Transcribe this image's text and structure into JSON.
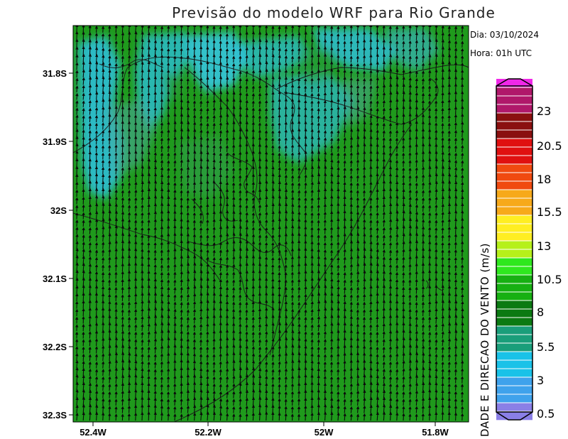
{
  "title": "Previsão do modelo WRF para Rio Grande",
  "info": {
    "date": "Dia: 03/10/2024",
    "hour": "Hora: 01h UTC"
  },
  "latitude_labels": [
    "31.8S",
    "31.9S",
    "32S",
    "32.1S",
    "32.2S",
    "32.3S"
  ],
  "longitude_labels": [
    "52.4W",
    "52.2W",
    "52W",
    "51.8W"
  ],
  "colorbar": {
    "title": "DADE E DIRECAO DO VENTO (m/s)",
    "labels": [
      "23",
      "20.5",
      "18",
      "15.5",
      "13",
      "10.5",
      "8",
      "5.5",
      "3",
      "0.5"
    ],
    "colors": {
      "low": "#8a7fe6",
      "blue": "#3fa2ec",
      "cyan": "#19c2e8",
      "teal": "#1a9e7a",
      "green_dark": "#0b7a12",
      "green": "#17b012",
      "green_bright": "#2ee81e",
      "yellow_green": "#b6f01a",
      "yellow": "#ffee22",
      "orange": "#f7a91a",
      "red_orange": "#f04a10",
      "red": "#e01010",
      "dark_red": "#8a1010",
      "magenta": "#b0186a",
      "pink": "#f028e8"
    }
  },
  "map_colors": {
    "background": "#1f9a1c",
    "cyan_region": "#2fc0e0",
    "teal_region": "#4aa898",
    "arrow": "#0a0a0a",
    "coast": "#1a1a1a"
  },
  "wind": {
    "direction": "south-to-north",
    "speed_range_ms": [
      3,
      8
    ]
  }
}
